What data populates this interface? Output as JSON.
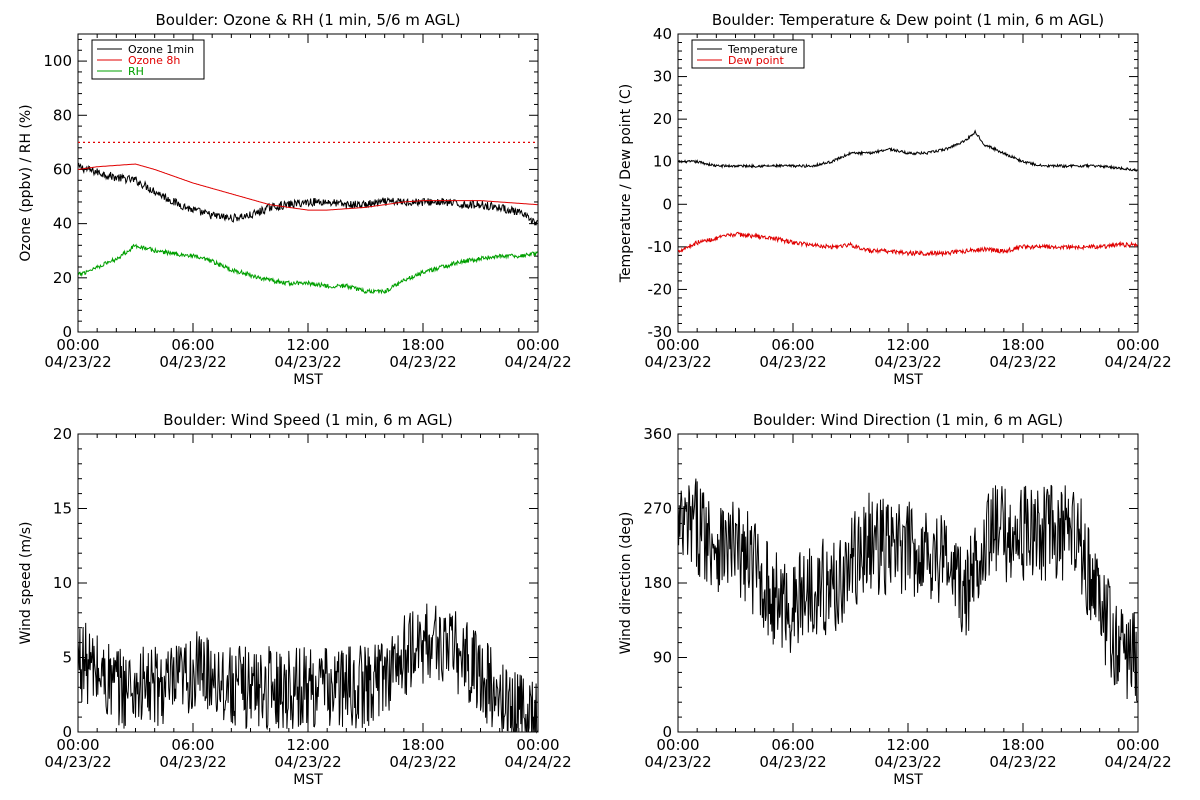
{
  "chart_data": [
    {
      "type": "line",
      "title": "Boulder: Ozone & RH (1 min, 5/6 m AGL)",
      "xlabel": "MST",
      "ylabel": "Ozone (ppbv) / RH (%)",
      "xlim": [
        "00:00 04/23/22",
        "00:00 04/24/22"
      ],
      "ylim": [
        0,
        110
      ],
      "yticks": [
        0,
        20,
        40,
        60,
        80,
        100
      ],
      "xticks": [
        {
          "time": "00:00",
          "date": "04/23/22"
        },
        {
          "time": "06:00",
          "date": "04/23/22"
        },
        {
          "time": "12:00",
          "date": "04/23/22"
        },
        {
          "time": "18:00",
          "date": "04/23/22"
        },
        {
          "time": "00:00",
          "date": "04/24/22"
        }
      ],
      "legend": "top-left",
      "reference_line": {
        "value": 70,
        "style": "dotted",
        "color": "#e00000"
      },
      "series": [
        {
          "name": "Ozone 1min",
          "color": "#000000",
          "noise": 1.5,
          "x": [
            "00:00",
            "01:00",
            "02:00",
            "03:00",
            "04:00",
            "05:00",
            "06:00",
            "07:00",
            "08:00",
            "09:00",
            "10:00",
            "11:00",
            "12:00",
            "13:00",
            "14:00",
            "15:00",
            "16:00",
            "17:00",
            "18:00",
            "19:00",
            "20:00",
            "21:00",
            "22:00",
            "23:00",
            "23:59"
          ],
          "values": [
            61,
            59,
            57,
            56,
            52,
            48,
            45,
            43,
            42,
            43,
            46,
            47,
            48,
            48,
            47,
            47,
            48,
            48,
            48,
            48,
            47,
            47,
            46,
            44,
            40
          ]
        },
        {
          "name": "Ozone 8h",
          "color": "#e00000",
          "noise": 0,
          "x": [
            "00:00",
            "01:00",
            "02:00",
            "03:00",
            "04:00",
            "05:00",
            "06:00",
            "07:00",
            "08:00",
            "09:00",
            "10:00",
            "11:00",
            "12:00",
            "13:00",
            "14:00",
            "15:00",
            "16:00",
            "17:00",
            "18:00",
            "19:00",
            "20:00",
            "21:00",
            "22:00",
            "23:00",
            "23:59"
          ],
          "values": [
            60,
            61,
            61.5,
            62,
            60,
            57.5,
            55,
            53,
            51,
            49,
            47,
            46,
            45,
            45,
            45.5,
            46,
            47,
            48,
            48.5,
            48.5,
            48.5,
            48.5,
            48,
            47.5,
            47
          ]
        },
        {
          "name": "RH",
          "color": "#00a000",
          "noise": 0.8,
          "x": [
            "00:00",
            "01:00",
            "02:00",
            "03:00",
            "04:00",
            "05:00",
            "06:00",
            "07:00",
            "08:00",
            "09:00",
            "10:00",
            "11:00",
            "12:00",
            "13:00",
            "14:00",
            "15:00",
            "16:00",
            "17:00",
            "18:00",
            "19:00",
            "20:00",
            "21:00",
            "22:00",
            "23:00",
            "23:59"
          ],
          "values": [
            21,
            24,
            27,
            32,
            30,
            29,
            28,
            26,
            23,
            21,
            19,
            18,
            18,
            17,
            17,
            15,
            15,
            19,
            22,
            24,
            26,
            27,
            28,
            28,
            29
          ]
        }
      ]
    },
    {
      "type": "line",
      "title": "Boulder: Temperature & Dew point (1 min, 6 m AGL)",
      "xlabel": "MST",
      "ylabel": "Temperature / Dew point (C)",
      "xlim": [
        "00:00 04/23/22",
        "00:00 04/24/22"
      ],
      "ylim": [
        -30,
        40
      ],
      "yticks": [
        -30,
        -20,
        -10,
        0,
        10,
        20,
        30,
        40
      ],
      "xticks": [
        {
          "time": "00:00",
          "date": "04/23/22"
        },
        {
          "time": "06:00",
          "date": "04/23/22"
        },
        {
          "time": "12:00",
          "date": "04/23/22"
        },
        {
          "time": "18:00",
          "date": "04/23/22"
        },
        {
          "time": "00:00",
          "date": "04/24/22"
        }
      ],
      "legend": "top-left",
      "series": [
        {
          "name": "Temperature",
          "color": "#000000",
          "noise": 0.3,
          "x": [
            "00:00",
            "01:00",
            "02:00",
            "03:00",
            "04:00",
            "05:00",
            "06:00",
            "07:00",
            "08:00",
            "09:00",
            "10:00",
            "11:00",
            "12:00",
            "13:00",
            "14:00",
            "15:00",
            "15:30",
            "16:00",
            "17:00",
            "18:00",
            "19:00",
            "20:00",
            "21:00",
            "22:00",
            "23:00",
            "23:59"
          ],
          "values": [
            10,
            10,
            9,
            9,
            9,
            9,
            9,
            9,
            10,
            12,
            12,
            13,
            12,
            12,
            13,
            15,
            17,
            14,
            12,
            10,
            9,
            9,
            9,
            9,
            8.5,
            8
          ]
        },
        {
          "name": "Dew point",
          "color": "#e00000",
          "noise": 0.5,
          "x": [
            "00:00",
            "01:00",
            "02:00",
            "03:00",
            "04:00",
            "05:00",
            "06:00",
            "07:00",
            "08:00",
            "09:00",
            "10:00",
            "11:00",
            "12:00",
            "13:00",
            "14:00",
            "15:00",
            "16:00",
            "17:00",
            "18:00",
            "19:00",
            "20:00",
            "21:00",
            "22:00",
            "23:00",
            "23:59"
          ],
          "values": [
            -11,
            -9,
            -8,
            -7,
            -7.5,
            -8,
            -9,
            -9.5,
            -10,
            -9.5,
            -11,
            -11,
            -11.5,
            -11.5,
            -11.5,
            -11,
            -10.5,
            -11,
            -10,
            -10,
            -10,
            -10,
            -10,
            -9.5,
            -9.5
          ]
        }
      ]
    },
    {
      "type": "line",
      "title": "Boulder: Wind Speed (1 min, 6 m AGL)",
      "xlabel": "MST",
      "ylabel": "Wind speed (m/s)",
      "xlim": [
        "00:00 04/23/22",
        "00:00 04/24/22"
      ],
      "ylim": [
        0,
        20
      ],
      "yticks": [
        0,
        5,
        10,
        15,
        20
      ],
      "xticks": [
        {
          "time": "00:00",
          "date": "04/23/22"
        },
        {
          "time": "06:00",
          "date": "04/23/22"
        },
        {
          "time": "12:00",
          "date": "04/23/22"
        },
        {
          "time": "18:00",
          "date": "04/23/22"
        },
        {
          "time": "00:00",
          "date": "04/24/22"
        }
      ],
      "legend": "none",
      "series": [
        {
          "name": "",
          "color": "#000000",
          "noise": 2.8,
          "floor": 0,
          "x": [
            "00:00",
            "01:00",
            "02:00",
            "03:00",
            "04:00",
            "05:00",
            "06:00",
            "07:00",
            "08:00",
            "09:00",
            "10:00",
            "11:00",
            "12:00",
            "13:00",
            "14:00",
            "15:00",
            "16:00",
            "17:00",
            "18:00",
            "19:00",
            "20:00",
            "21:00",
            "22:00",
            "23:00",
            "23:59"
          ],
          "values": [
            5,
            4,
            3,
            3,
            3,
            3,
            4,
            4,
            3,
            3,
            3,
            3,
            3,
            3,
            3,
            3,
            4,
            5,
            6,
            6,
            5,
            4,
            2,
            1.5,
            1
          ]
        }
      ]
    },
    {
      "type": "line",
      "title": "Boulder: Wind Direction (1 min, 6 m AGL)",
      "xlabel": "MST",
      "ylabel": "Wind direction (deg)",
      "xlim": [
        "00:00 04/23/22",
        "00:00 04/24/22"
      ],
      "ylim": [
        0,
        360
      ],
      "yticks": [
        0,
        90,
        180,
        270,
        360
      ],
      "xticks": [
        {
          "time": "00:00",
          "date": "04/23/22"
        },
        {
          "time": "06:00",
          "date": "04/23/22"
        },
        {
          "time": "12:00",
          "date": "04/23/22"
        },
        {
          "time": "18:00",
          "date": "04/23/22"
        },
        {
          "time": "00:00",
          "date": "04/24/22"
        }
      ],
      "legend": "none",
      "series": [
        {
          "name": "",
          "color": "#000000",
          "noise": 60,
          "floor": 0,
          "ceil": 360,
          "x": [
            "00:00",
            "01:00",
            "02:00",
            "03:00",
            "04:00",
            "05:00",
            "06:00",
            "07:00",
            "08:00",
            "09:00",
            "10:00",
            "11:00",
            "12:00",
            "13:00",
            "14:00",
            "15:00",
            "16:00",
            "17:00",
            "18:00",
            "19:00",
            "20:00",
            "21:00",
            "22:00",
            "23:00",
            "23:59"
          ],
          "values": [
            240,
            250,
            230,
            220,
            200,
            160,
            150,
            180,
            170,
            200,
            230,
            220,
            220,
            220,
            210,
            160,
            240,
            240,
            240,
            240,
            240,
            230,
            150,
            100,
            90
          ]
        }
      ]
    }
  ]
}
